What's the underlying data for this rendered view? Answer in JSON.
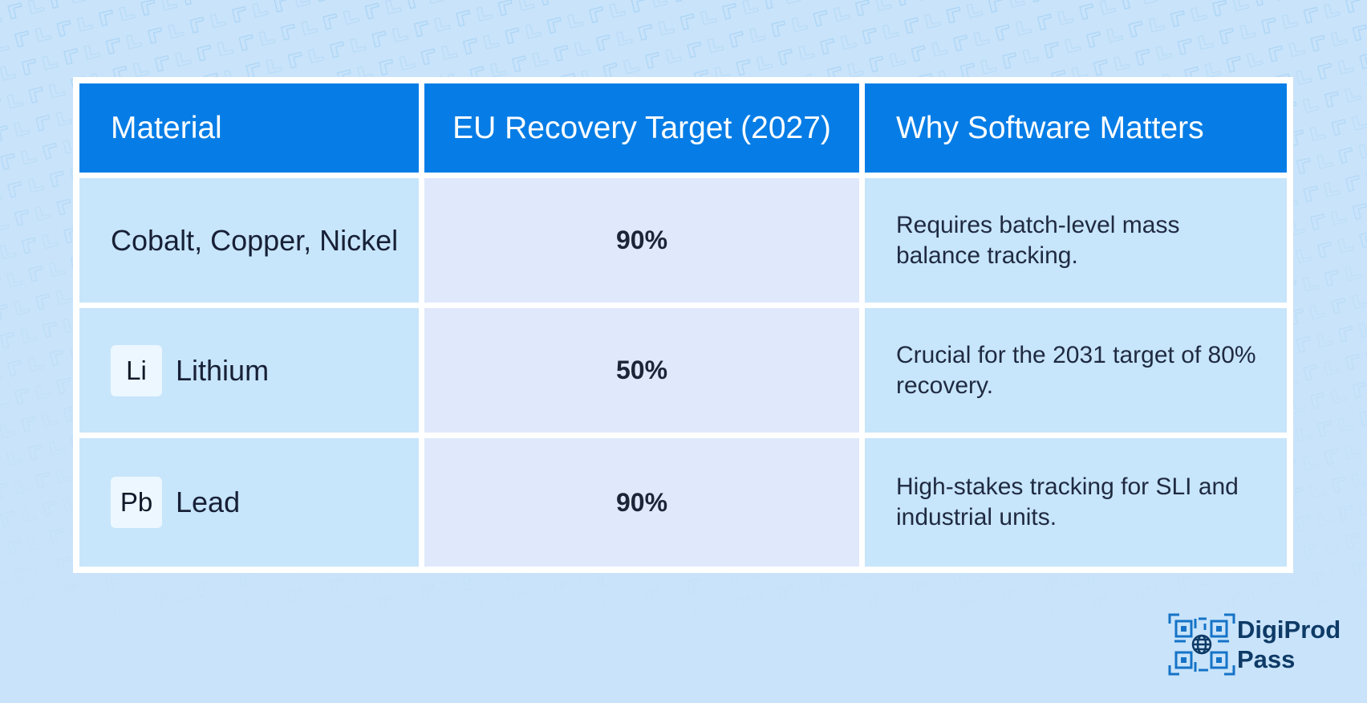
{
  "table": {
    "headers": [
      "Material",
      "EU Recovery Target (2027)",
      "Why Software Matters"
    ],
    "rows": [
      {
        "symbol": "",
        "material": "Cobalt, Copper, Nickel",
        "target": "90%",
        "why": "Requires batch-level mass balance tracking."
      },
      {
        "symbol": "Li",
        "material": "Lithium",
        "target": "50%",
        "why": "Crucial for the 2031 target of 80% recovery."
      },
      {
        "symbol": "Pb",
        "material": "Lead",
        "target": "90%",
        "why": "High-stakes tracking for SLI and industrial units."
      }
    ]
  },
  "logo": {
    "line1": "DigiProd",
    "line2": "Pass"
  },
  "colors": {
    "background": "#c8e3fa",
    "header": "#067de6",
    "cell": "#c7e5fb",
    "target_cell": "#e0e8fc",
    "logo_text": "#0e3a66",
    "logo_mark": "#1573c7"
  }
}
